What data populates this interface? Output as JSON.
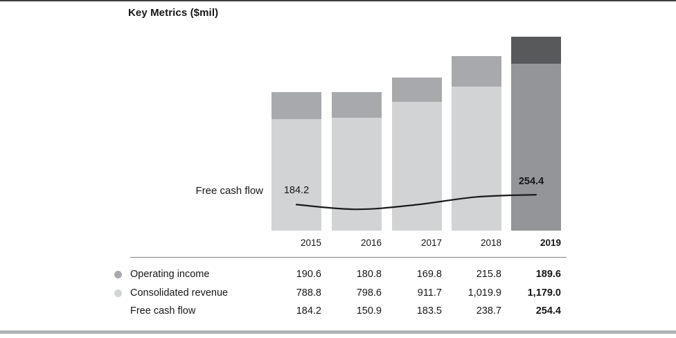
{
  "title": "Key Metrics ($mil)",
  "chart_data": {
    "type": "bar",
    "variant": "stacked-bars-with-line-overlay",
    "title": "Key Metrics ($mil)",
    "categories": [
      "2015",
      "2016",
      "2017",
      "2018",
      "2019"
    ],
    "highlight_category": "2019",
    "series": [
      {
        "name": "Consolidated revenue",
        "role": "bar-lower-segment",
        "values": [
          788.8,
          798.6,
          911.7,
          1019.9,
          1179.0
        ]
      },
      {
        "name": "Operating income",
        "role": "bar-upper-segment",
        "values": [
          190.6,
          180.8,
          169.8,
          215.8,
          189.6
        ]
      },
      {
        "name": "Free cash flow",
        "role": "line",
        "values": [
          184.2,
          150.9,
          183.5,
          238.7,
          254.4
        ]
      }
    ],
    "annotations": {
      "line_label": "Free cash flow",
      "first_value_label": "184.2",
      "last_value_label": "254.4"
    },
    "axes": {
      "y_axis_visible": false,
      "gridlines": false
    },
    "legend_position": "table-left-bullets"
  },
  "table": {
    "rows": [
      {
        "label": "Operating income",
        "bullet": "#a7a9ac",
        "values": [
          "190.6",
          "180.8",
          "169.8",
          "215.8",
          "189.6"
        ]
      },
      {
        "label": "Consolidated revenue",
        "bullet": "#d1d3d4",
        "values": [
          "788.8",
          "798.6",
          "911.7",
          "1,019.9",
          "1,179.0"
        ]
      },
      {
        "label": "Free cash flow",
        "bullet": null,
        "values": [
          "184.2",
          "150.9",
          "183.5",
          "238.7",
          "254.4"
        ]
      }
    ]
  },
  "colors": {
    "operating_income_bar": "#a7a9ac",
    "consolidated_revenue_bar": "#d1d3d4",
    "operating_income_bar_2019": "#58595b",
    "consolidated_revenue_bar_2019": "#939598",
    "line": "#1a1a1a",
    "top_rule": "#3d3e40",
    "table_rule": "#808285",
    "bottom_rule": "#b1b3b5"
  }
}
